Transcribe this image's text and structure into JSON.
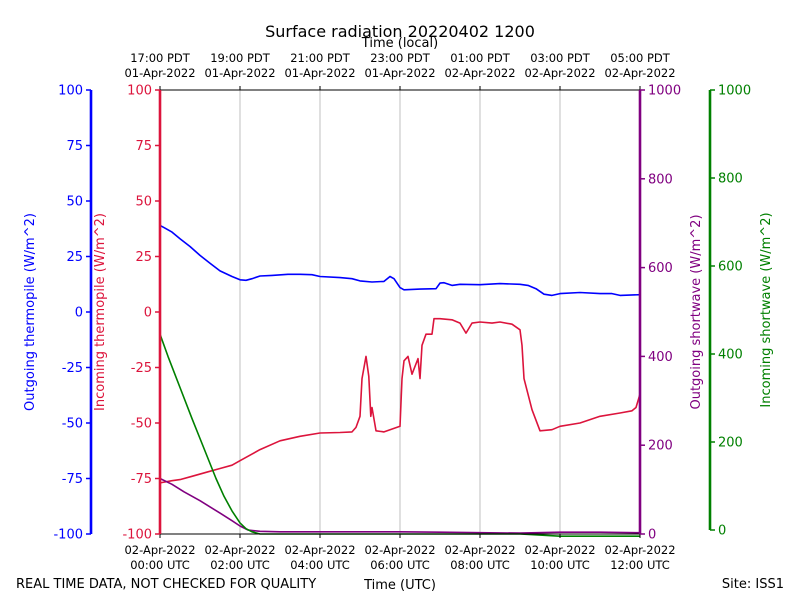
{
  "chart_data": {
    "type": "line",
    "title": "Surface radiation 20220402 1200",
    "top_axis_label": "Time (local)",
    "xlabel": "Time (UTC)",
    "x_unit": "hours since 02-Apr-2022 00:00 UTC",
    "xlim": [
      0,
      12
    ],
    "utc_ticks": [
      {
        "x": 0,
        "date": "02-Apr-2022",
        "time": "00:00 UTC"
      },
      {
        "x": 2,
        "date": "02-Apr-2022",
        "time": "02:00 UTC"
      },
      {
        "x": 4,
        "date": "02-Apr-2022",
        "time": "04:00 UTC"
      },
      {
        "x": 6,
        "date": "02-Apr-2022",
        "time": "06:00 UTC"
      },
      {
        "x": 8,
        "date": "02-Apr-2022",
        "time": "08:00 UTC"
      },
      {
        "x": 10,
        "date": "02-Apr-2022",
        "time": "10:00 UTC"
      },
      {
        "x": 12,
        "date": "02-Apr-2022",
        "time": "12:00 UTC"
      }
    ],
    "local_ticks": [
      {
        "x": 0,
        "time": "17:00 PDT",
        "date": "01-Apr-2022"
      },
      {
        "x": 2,
        "time": "19:00 PDT",
        "date": "01-Apr-2022"
      },
      {
        "x": 4,
        "time": "21:00 PDT",
        "date": "01-Apr-2022"
      },
      {
        "x": 6,
        "time": "23:00 PDT",
        "date": "01-Apr-2022"
      },
      {
        "x": 8,
        "time": "01:00 PDT",
        "date": "02-Apr-2022"
      },
      {
        "x": 10,
        "time": "03:00 PDT",
        "date": "02-Apr-2022"
      },
      {
        "x": 12,
        "time": "05:00 PDT",
        "date": "02-Apr-2022"
      }
    ],
    "grid": "vertical",
    "axes": [
      {
        "id": "outgoing_thermopile",
        "label": "Outgoing thermopile (W/m^2)",
        "color": "#0000ff",
        "ylim": [
          -100,
          100
        ],
        "ticks": [
          -100,
          -75,
          -50,
          -25,
          0,
          25,
          50,
          75,
          100
        ]
      },
      {
        "id": "incoming_thermopile",
        "label": "Incoming thermopile (W/m^2)",
        "color": "#dc143c",
        "ylim": [
          -100,
          100
        ],
        "ticks": [
          -100,
          -75,
          -50,
          -25,
          0,
          25,
          50,
          75,
          100
        ]
      },
      {
        "id": "outgoing_shortwave",
        "label": "Outgoing shortwave (W/m^2)",
        "color": "#800080",
        "ylim": [
          0,
          1000
        ],
        "ticks": [
          0,
          200,
          400,
          600,
          800,
          1000
        ]
      },
      {
        "id": "incoming_shortwave",
        "label": "Incoming shortwave (W/m^2)",
        "color": "#008000",
        "ylim": [
          0,
          1000
        ],
        "ticks": [
          0,
          200,
          400,
          600,
          800,
          1000
        ]
      }
    ],
    "series": [
      {
        "id": "outgoing_thermopile",
        "color": "#0000ff",
        "axis": "outgoing_thermopile",
        "points": [
          [
            0,
            39
          ],
          [
            0.1,
            38
          ],
          [
            0.3,
            36
          ],
          [
            0.5,
            33
          ],
          [
            0.75,
            29.5
          ],
          [
            1,
            25.5
          ],
          [
            1.25,
            22
          ],
          [
            1.5,
            18.5
          ],
          [
            1.8,
            16
          ],
          [
            2,
            14.5
          ],
          [
            2.15,
            14.3
          ],
          [
            2.3,
            15
          ],
          [
            2.5,
            16.2
          ],
          [
            2.8,
            16.5
          ],
          [
            3.2,
            17
          ],
          [
            3.5,
            17
          ],
          [
            3.8,
            16.8
          ],
          [
            4,
            16
          ],
          [
            4.5,
            15.5
          ],
          [
            4.8,
            15
          ],
          [
            5,
            14
          ],
          [
            5.3,
            13.5
          ],
          [
            5.6,
            13.8
          ],
          [
            5.75,
            16
          ],
          [
            5.85,
            15
          ],
          [
            6,
            11
          ],
          [
            6.1,
            10
          ],
          [
            6.5,
            10.3
          ],
          [
            6.9,
            10.5
          ],
          [
            7,
            13
          ],
          [
            7.1,
            13.2
          ],
          [
            7.3,
            12
          ],
          [
            7.5,
            12.5
          ],
          [
            8,
            12.3
          ],
          [
            8.5,
            12.8
          ],
          [
            9,
            12.5
          ],
          [
            9.2,
            12
          ],
          [
            9.4,
            10.5
          ],
          [
            9.6,
            8
          ],
          [
            9.8,
            7.5
          ],
          [
            10,
            8.3
          ],
          [
            10.5,
            8.8
          ],
          [
            11,
            8.3
          ],
          [
            11.3,
            8.3
          ],
          [
            11.5,
            7.5
          ],
          [
            12,
            7.8
          ]
        ]
      },
      {
        "id": "incoming_thermopile",
        "color": "#dc143c",
        "axis": "incoming_thermopile",
        "points": [
          [
            0,
            -77
          ],
          [
            0.3,
            -76
          ],
          [
            0.5,
            -75.5
          ],
          [
            0.8,
            -74
          ],
          [
            1.2,
            -72
          ],
          [
            1.5,
            -70.5
          ],
          [
            1.8,
            -69
          ],
          [
            2,
            -67
          ],
          [
            2.3,
            -64
          ],
          [
            2.5,
            -62
          ],
          [
            3,
            -58
          ],
          [
            3.5,
            -56
          ],
          [
            4,
            -54.5
          ],
          [
            4.5,
            -54.3
          ],
          [
            4.8,
            -54
          ],
          [
            4.9,
            -52
          ],
          [
            5,
            -47
          ],
          [
            5.05,
            -30
          ],
          [
            5.15,
            -20
          ],
          [
            5.22,
            -29
          ],
          [
            5.27,
            -47
          ],
          [
            5.3,
            -43
          ],
          [
            5.4,
            -53.5
          ],
          [
            5.6,
            -54
          ],
          [
            6,
            -51.5
          ],
          [
            6.05,
            -30
          ],
          [
            6.1,
            -22
          ],
          [
            6.2,
            -20
          ],
          [
            6.3,
            -28
          ],
          [
            6.45,
            -21
          ],
          [
            6.5,
            -30
          ],
          [
            6.55,
            -15
          ],
          [
            6.65,
            -10
          ],
          [
            6.8,
            -10
          ],
          [
            6.85,
            -3
          ],
          [
            7,
            -3
          ],
          [
            7.3,
            -3.5
          ],
          [
            7.5,
            -5
          ],
          [
            7.65,
            -9.5
          ],
          [
            7.8,
            -5
          ],
          [
            8,
            -4.5
          ],
          [
            8.3,
            -5
          ],
          [
            8.5,
            -4.5
          ],
          [
            8.8,
            -5.5
          ],
          [
            9,
            -8
          ],
          [
            9.05,
            -15
          ],
          [
            9.1,
            -30
          ],
          [
            9.3,
            -44
          ],
          [
            9.5,
            -53.5
          ],
          [
            9.8,
            -53
          ],
          [
            10,
            -51.5
          ],
          [
            10.5,
            -50
          ],
          [
            11,
            -47
          ],
          [
            11.5,
            -45.5
          ],
          [
            11.8,
            -44.5
          ],
          [
            11.9,
            -43
          ],
          [
            12,
            -37
          ]
        ]
      },
      {
        "id": "outgoing_shortwave",
        "color": "#800080",
        "axis": "outgoing_shortwave",
        "points": [
          [
            0,
            125
          ],
          [
            0.3,
            112
          ],
          [
            0.6,
            95
          ],
          [
            1,
            75
          ],
          [
            1.5,
            47
          ],
          [
            1.8,
            30
          ],
          [
            2,
            18
          ],
          [
            2.2,
            9
          ],
          [
            2.5,
            6
          ],
          [
            3,
            5
          ],
          [
            4,
            5
          ],
          [
            5,
            5
          ],
          [
            6,
            5
          ],
          [
            7,
            4
          ],
          [
            8,
            3
          ],
          [
            9,
            2
          ],
          [
            10,
            4
          ],
          [
            11,
            4
          ],
          [
            12,
            3
          ]
        ]
      },
      {
        "id": "incoming_shortwave",
        "color": "#008000",
        "axis": "incoming_shortwave",
        "points": [
          [
            0,
            450
          ],
          [
            0.2,
            400
          ],
          [
            0.5,
            330
          ],
          [
            0.8,
            260
          ],
          [
            1,
            215
          ],
          [
            1.2,
            170
          ],
          [
            1.4,
            125
          ],
          [
            1.6,
            85
          ],
          [
            1.8,
            52
          ],
          [
            2,
            25
          ],
          [
            2.15,
            12
          ],
          [
            2.3,
            5
          ],
          [
            2.5,
            0
          ],
          [
            3,
            0
          ],
          [
            4,
            0
          ],
          [
            5,
            0
          ],
          [
            6,
            0
          ],
          [
            7,
            0
          ],
          [
            8,
            0
          ],
          [
            9,
            0
          ],
          [
            10,
            -5
          ],
          [
            11,
            -5
          ],
          [
            12,
            -5
          ]
        ]
      }
    ]
  },
  "footer": {
    "left_note": "REAL TIME DATA, NOT CHECKED FOR QUALITY",
    "site": "Site: ISS1"
  }
}
